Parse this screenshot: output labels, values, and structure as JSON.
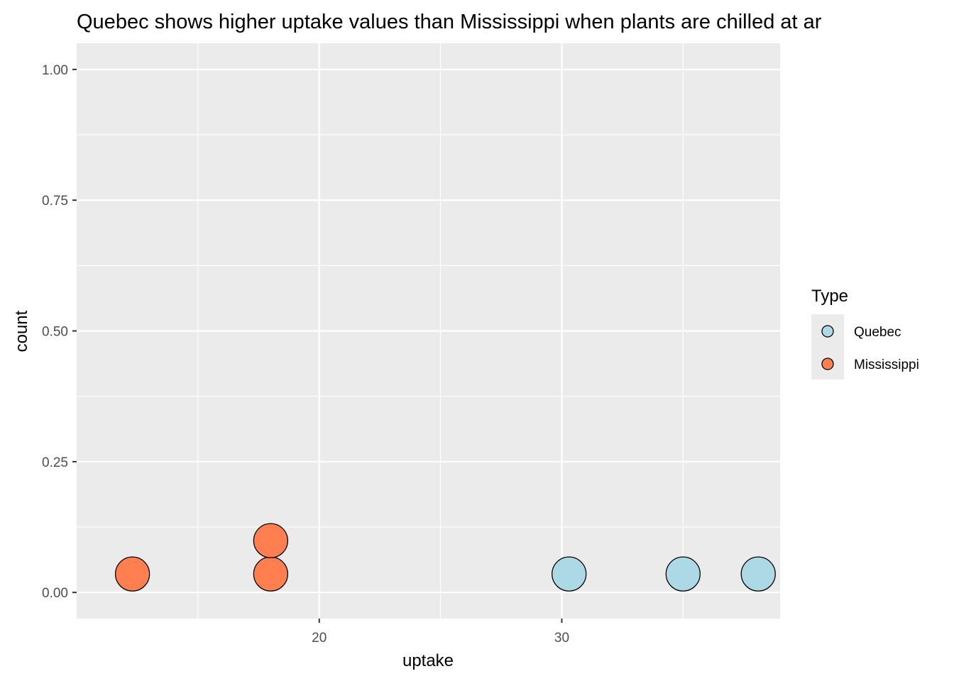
{
  "chart_data": {
    "type": "dotplot",
    "title": "Quebec shows higher uptake values than Mississippi when plants are chilled at ar",
    "xlabel": "uptake",
    "ylabel": "count",
    "xlim": [
      10.0,
      39.0
    ],
    "ylim": [
      -0.05,
      1.05
    ],
    "x_ticks": [
      20,
      30
    ],
    "x_tick_labels": [
      "20",
      "30"
    ],
    "x_minor_ticks": [
      15,
      25,
      35
    ],
    "y_ticks": [
      0.0,
      0.25,
      0.5,
      0.75,
      1.0
    ],
    "y_tick_labels": [
      "0.00",
      "0.25",
      "0.50",
      "0.75",
      "1.00"
    ],
    "grid": true,
    "legend": {
      "title": "Type",
      "position": "right",
      "items": [
        {
          "label": "Quebec",
          "color": "#add8e6"
        },
        {
          "label": "Mississippi",
          "color": "#ff7f50"
        }
      ]
    },
    "series": [
      {
        "name": "Quebec",
        "color": "#add8e6",
        "points": [
          {
            "x": 30.3,
            "stack": 1
          },
          {
            "x": 35.0,
            "stack": 1
          },
          {
            "x": 38.1,
            "stack": 1
          }
        ]
      },
      {
        "name": "Mississippi",
        "color": "#ff7f50",
        "points": [
          {
            "x": 12.3,
            "stack": 1
          },
          {
            "x": 18.0,
            "stack": 1
          },
          {
            "x": 18.0,
            "stack": 2
          }
        ]
      }
    ]
  }
}
